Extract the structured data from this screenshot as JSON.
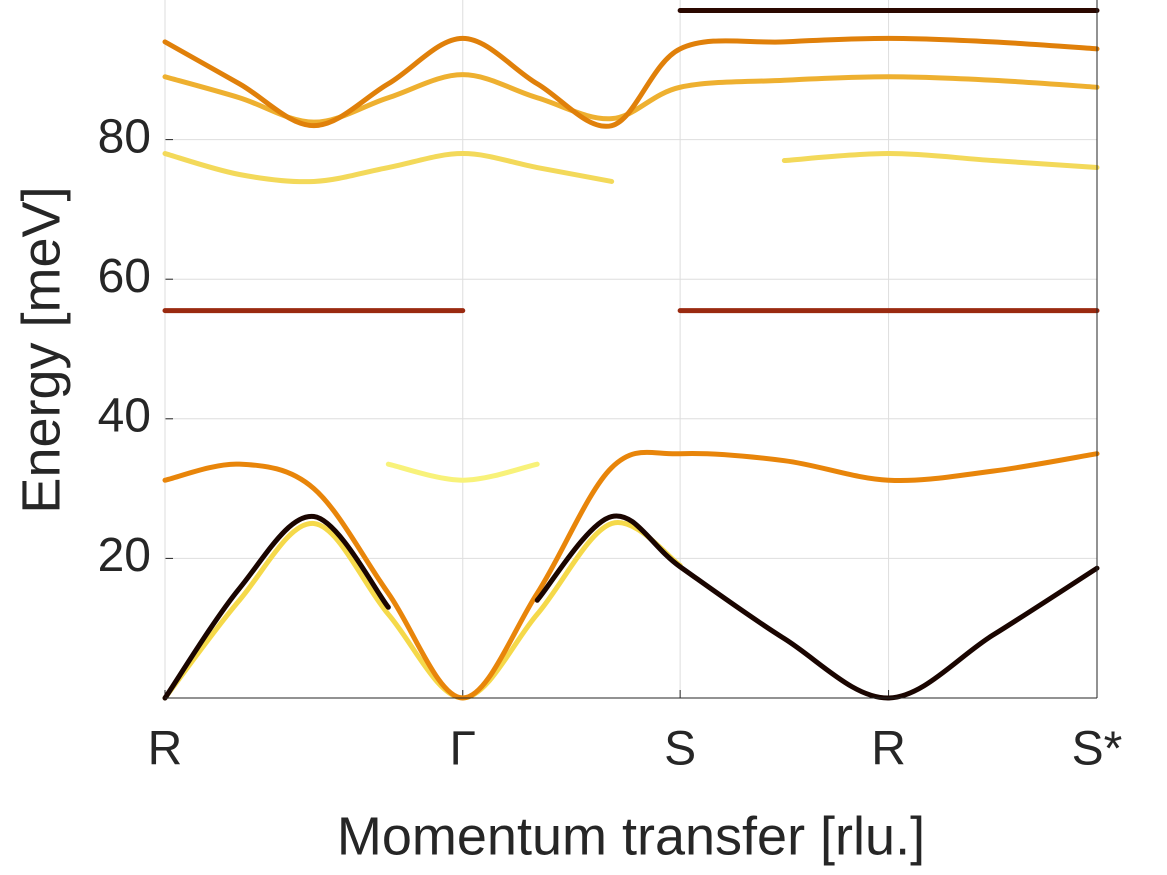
{
  "chart_data": {
    "type": "line",
    "x_label": "Momentum transfer [rlu.]",
    "y_label": "Energy [meV]",
    "x": [
      0,
      0.25,
      0.5,
      0.75,
      1.0,
      1.25,
      1.5,
      1.73,
      2.08,
      2.43,
      2.78,
      3.13
    ],
    "xlim": [
      0,
      3.13
    ],
    "xticks": [
      {
        "value": 0,
        "label": "R"
      },
      {
        "value": 1.0,
        "label": "Γ"
      },
      {
        "value": 1.73,
        "label": "S"
      },
      {
        "value": 2.43,
        "label": "R"
      },
      {
        "value": 3.13,
        "label": "S*"
      }
    ],
    "ylim": [
      0,
      100
    ],
    "yticks": [
      20,
      40,
      60,
      80
    ],
    "grid": true,
    "series": [
      {
        "color": "#f8f27a",
        "values": [
          null,
          null,
          null,
          33.5,
          31.2,
          33.5,
          null,
          null,
          null,
          null,
          null,
          null
        ]
      },
      {
        "color": "#f5d94a",
        "values": [
          0,
          14,
          25,
          12,
          0,
          12,
          25,
          19,
          null,
          null,
          null,
          null
        ]
      },
      {
        "color": "#e8850a",
        "values": [
          31.2,
          33.5,
          30,
          15,
          0,
          15,
          33,
          35,
          34,
          31.2,
          32.5,
          35
        ]
      },
      {
        "color": "#1a0500",
        "values": [
          0,
          15.7,
          26,
          13,
          null,
          14,
          26,
          18.8,
          8.5,
          0,
          9,
          18.6
        ]
      },
      {
        "color": "#9a2a10",
        "values": [
          55.5,
          55.5,
          55.5,
          55.5,
          55.5,
          null,
          null,
          55.5,
          55.5,
          55.5,
          55.5,
          55.5
        ]
      },
      {
        "color": "#f3d95a",
        "values": [
          78,
          75,
          74,
          76,
          78,
          76,
          74,
          null,
          77,
          78,
          77,
          76
        ]
      },
      {
        "color": "#eeb030",
        "values": [
          89,
          86,
          82.5,
          86,
          89.3,
          86,
          83,
          87.5,
          88.5,
          89,
          88.5,
          87.5
        ]
      },
      {
        "color": "#e0800a",
        "values": [
          94,
          88,
          82,
          88,
          94.5,
          88,
          82,
          93,
          94,
          94.5,
          94,
          93
        ]
      },
      {
        "color": "#2a0800",
        "values": [
          null,
          null,
          null,
          null,
          null,
          null,
          null,
          98.5,
          98.5,
          98.5,
          98.5,
          98.5
        ]
      }
    ]
  }
}
